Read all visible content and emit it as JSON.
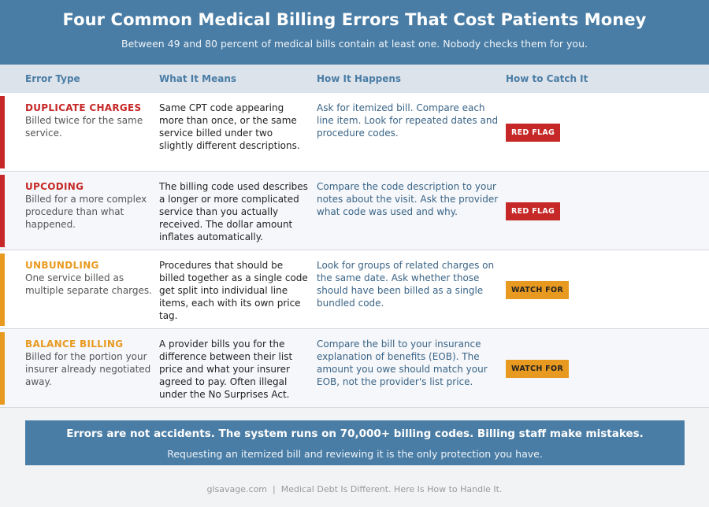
{
  "header": {
    "title": "Four Common Medical Billing Errors That Cost Patients Money",
    "subtitle": "Between 49 and 80 percent of medical bills contain at least one. Nobody checks them for you."
  },
  "columns": [
    "Error Type",
    "What It Means",
    "How It Happens",
    "How to Catch It"
  ],
  "colors": {
    "red": "#c62828",
    "orange": "#e89a20",
    "accent": "#4a7da5"
  },
  "rows": [
    {
      "name": "DUPLICATE CHARGES",
      "sub": "Billed twice for the same service.",
      "means": "Same CPT code appearing more than once, or the same service billed under two slightly different descriptions.",
      "happens": "Ask for itemized bill. Compare each line item. Look for repeated dates and procedure codes.",
      "badge": "RED FLAG",
      "level": "red"
    },
    {
      "name": "UPCODING",
      "sub": "Billed for a more complex procedure than what happened.",
      "means": "The billing code used describes a longer or more complicated service than you actually received. The dollar amount inflates automatically.",
      "happens": "Compare the code description to your notes about the visit. Ask the provider what code was used and why.",
      "badge": "RED FLAG",
      "level": "red"
    },
    {
      "name": "UNBUNDLING",
      "sub": "One service billed as multiple separate charges.",
      "means": "Procedures that should be billed together as a single code get split into individual line items, each with its own price tag.",
      "happens": "Look for groups of related charges on the same date. Ask whether those should have been billed as a single bundled code.",
      "badge": "WATCH FOR",
      "level": "orange"
    },
    {
      "name": "BALANCE BILLING",
      "sub": "Billed for the portion your insurer already negotiated away.",
      "means": "A provider bills you for the difference between their list price and what your insurer agreed to pay. Often illegal under the No Surprises Act.",
      "happens": "Compare the bill to your insurance explanation of benefits (EOB). The amount you owe should match your EOB, not the provider's list price.",
      "badge": "WATCH FOR",
      "level": "orange"
    }
  ],
  "callout": {
    "headline": "Errors are not accidents. The system runs on 70,000+ billing codes. Billing staff make mistakes.",
    "text": "Requesting an itemized bill and reviewing it is the only protection you have."
  },
  "footer": "glsavage.com  |  Medical Debt Is Different. Here Is How to Handle It."
}
